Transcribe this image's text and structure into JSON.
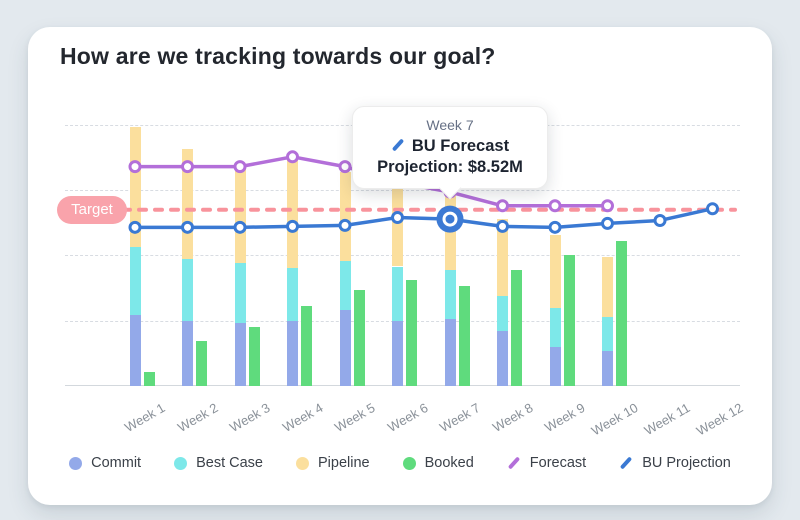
{
  "title": "How are we tracking towards our goal?",
  "target": {
    "label": "Target",
    "value_musd": 9.0
  },
  "tooltip": {
    "week_label": "Week 7",
    "series_label": "BU Forecast",
    "value_line": "Projection: $8.52M"
  },
  "legend": [
    {
      "label": "Commit",
      "marker": "dot",
      "color": "#93a9e9"
    },
    {
      "label": "Best Case",
      "marker": "dot",
      "color": "#7de8e9"
    },
    {
      "label": "Pipeline",
      "marker": "dot",
      "color": "#fbdf9d"
    },
    {
      "label": "Booked",
      "marker": "dot",
      "color": "#5fdb7d"
    },
    {
      "label": "Forecast",
      "marker": "slash",
      "color": "#b36fd9"
    },
    {
      "label": "BU Projection",
      "marker": "slash",
      "color": "#3a79d3"
    }
  ],
  "colors": {
    "target_pill": "#f9a3ab",
    "target_line": "#f8939c",
    "highlight_marker": "#3d7ad4",
    "gridline": "#d8dce2"
  },
  "chart_data": {
    "type": "bar",
    "subtype": "stacked-bar with line overlay",
    "units": "$M (inferred from tooltip; no y-axis labels shown)",
    "ylim": [
      0,
      14.6
    ],
    "gridlines": [
      3.33,
      6.67,
      10.0,
      13.33
    ],
    "grid": "dashed horizontal",
    "legend_position": "bottom",
    "categories": [
      "Week 1",
      "Week 2",
      "Week 3",
      "Week 4",
      "Week 5",
      "Week 6",
      "Week 7",
      "Week 8",
      "Week 9",
      "Week 10",
      "Week 11",
      "Week 12"
    ],
    "series": [
      {
        "name": "Commit",
        "type": "bar-stacked",
        "color": "#93a9e9",
        "values": [
          3.6,
          3.3,
          3.2,
          3.3,
          3.9,
          3.3,
          3.4,
          2.8,
          2.0,
          1.8,
          null,
          null
        ]
      },
      {
        "name": "Best Case",
        "type": "bar-stacked",
        "color": "#7de8e9",
        "values": [
          3.5,
          3.2,
          3.1,
          2.7,
          2.5,
          2.8,
          2.5,
          1.8,
          2.0,
          1.7,
          null,
          null
        ]
      },
      {
        "name": "Pipeline",
        "type": "bar-stacked",
        "color": "#fbdf9d",
        "values": [
          6.1,
          5.6,
          4.9,
          5.8,
          4.5,
          4.0,
          4.4,
          3.9,
          3.7,
          3.1,
          null,
          null
        ]
      },
      {
        "name": "Booked",
        "type": "bar",
        "color": "#5fdb7d",
        "values": [
          0.7,
          2.3,
          3.0,
          4.1,
          4.9,
          5.4,
          5.1,
          5.9,
          6.7,
          7.4,
          null,
          null
        ]
      },
      {
        "name": "Forecast",
        "type": "line",
        "color": "#b36fd9",
        "values": [
          11.2,
          11.2,
          11.2,
          11.7,
          11.2,
          10.4,
          9.9,
          9.2,
          9.2,
          9.2,
          null,
          null
        ]
      },
      {
        "name": "BU Projection",
        "type": "line",
        "color": "#3a79d3",
        "values": [
          8.1,
          8.1,
          8.1,
          8.15,
          8.2,
          8.6,
          8.52,
          8.15,
          8.1,
          8.3,
          8.45,
          9.05
        ]
      }
    ],
    "target_value": 9.0,
    "highlight": {
      "series": "BU Projection",
      "category": "Week 7",
      "index": 6,
      "value": 8.52
    }
  }
}
